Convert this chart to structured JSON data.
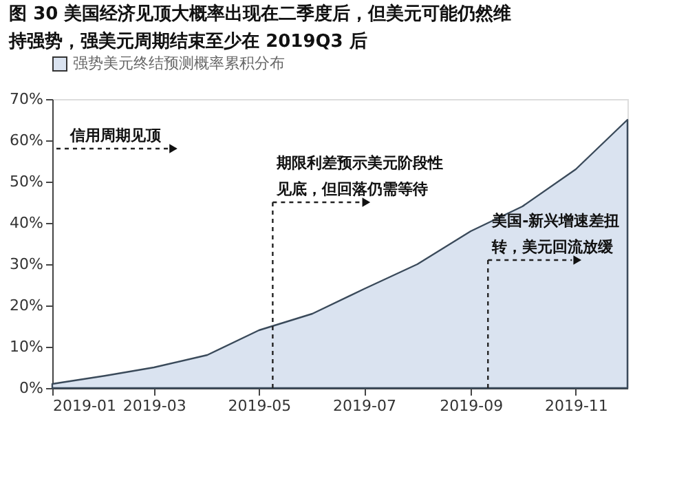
{
  "chart_data": {
    "type": "area",
    "title": "图 30 美国经济见顶大概率出现在二季度后，但美元可能仍然维持强势，强美元周期结束至少在 2019Q3 后",
    "x": [
      "2019-01",
      "2019-02",
      "2019-03",
      "2019-04",
      "2019-05",
      "2019-06",
      "2019-07",
      "2019-08",
      "2019-09",
      "2019-10",
      "2019-11",
      "2019-12"
    ],
    "series": [
      {
        "name": "强势美元终结预测概率累积分布",
        "color": "#dae3f0",
        "values": [
          1,
          3,
          5,
          8,
          14,
          18,
          24,
          30,
          38,
          44,
          53,
          65
        ]
      }
    ],
    "xlim": [
      "2019-01",
      "2019-12"
    ],
    "xticks": [
      "2019-01",
      "2019-03",
      "2019-05",
      "2019-07",
      "2019-09",
      "2019-11"
    ],
    "ylim": [
      0,
      70
    ],
    "yticks": [
      {
        "value": 0,
        "label": "0%"
      },
      {
        "value": 10,
        "label": "10%"
      },
      {
        "value": 20,
        "label": "20%"
      },
      {
        "value": 30,
        "label": "30%"
      },
      {
        "value": 40,
        "label": "40%"
      },
      {
        "value": 50,
        "label": "50%"
      },
      {
        "value": 60,
        "label": "60%"
      },
      {
        "value": 70,
        "label": "70%"
      }
    ],
    "annotations": [
      "信用周期见顶"
    ],
    "ref_lines": [
      {
        "axis": "x",
        "value": "2019-05-09",
        "label": "期限利差预示美元阶段性见底，但回落仍需等待",
        "line_style": "dashed"
      },
      {
        "axis": "x",
        "value": "2019-09-11",
        "label": "美国-新兴增速差扭转，美元回流放缓",
        "line_style": "dashed"
      }
    ],
    "legend": "top",
    "grid": false
  }
}
